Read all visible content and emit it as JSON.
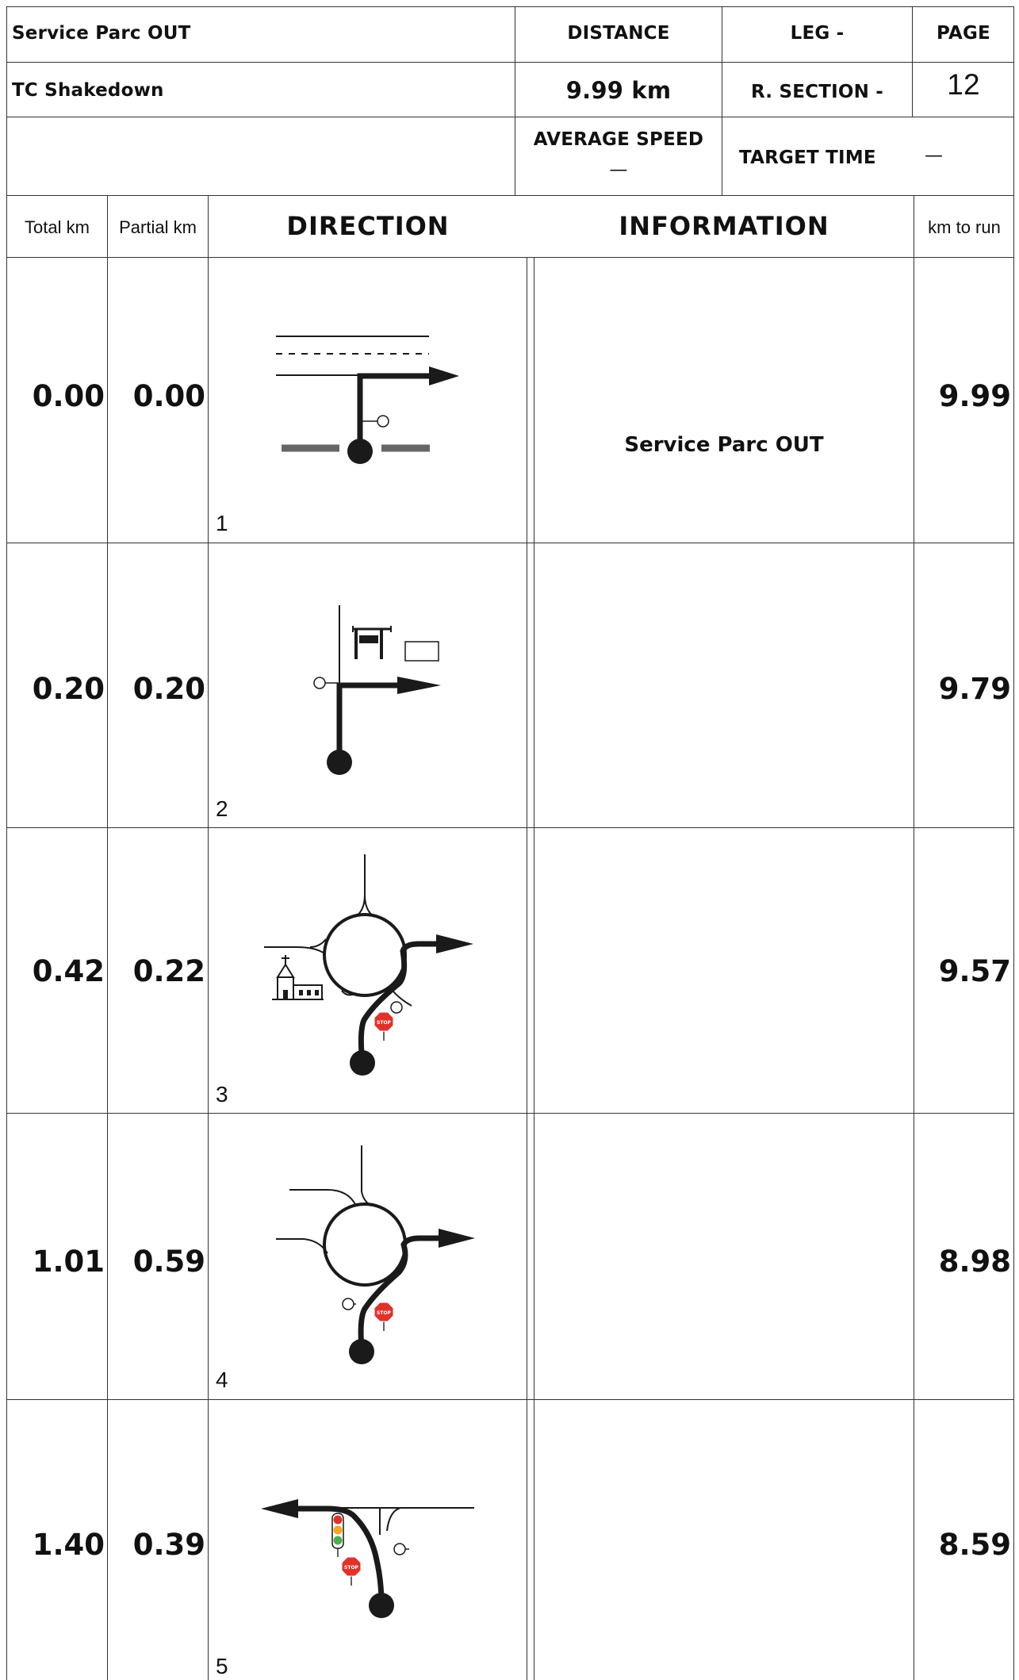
{
  "header": {
    "stage_title": "Service Parc OUT",
    "stage_subtitle": "TC Shakedown",
    "distance_label": "DISTANCE",
    "distance_value": "9.99 km",
    "leg_label": "LEG -",
    "section_label": "R. SECTION -",
    "page_label": "PAGE",
    "page_number": "12",
    "avg_speed_label": "AVERAGE SPEED",
    "avg_speed_value": "—",
    "target_time_label": "TARGET TIME",
    "target_time_value": "—"
  },
  "columns": {
    "total_km": "Total km",
    "partial_km": "Partial km",
    "direction": "DIRECTION",
    "information": "INFORMATION",
    "km_to_run": "km to run"
  },
  "rows": [
    {
      "total": "0.00",
      "partial": "0.00",
      "step": "1",
      "info": "Service Parc OUT",
      "to_run": "9.99",
      "icon": "t-junction-right-icon"
    },
    {
      "total": "0.20",
      "partial": "0.20",
      "step": "2",
      "info": "",
      "to_run": "9.79",
      "icon": "right-turn-gas-station-icon"
    },
    {
      "total": "0.42",
      "partial": "0.22",
      "step": "3",
      "info": "",
      "to_run": "9.57",
      "icon": "roundabout-church-stop-icon"
    },
    {
      "total": "1.01",
      "partial": "0.59",
      "step": "4",
      "info": "",
      "to_run": "8.98",
      "icon": "roundabout-stop-icon"
    },
    {
      "total": "1.40",
      "partial": "0.39",
      "step": "5",
      "info": "",
      "to_run": "8.59",
      "icon": "t-junction-left-traffic-light-icon"
    }
  ],
  "colors": {
    "line": "#333333",
    "ink": "#1a1a1a",
    "stop_red": "#e0322b",
    "light_green": "#4caf50",
    "light_amber": "#f5a623",
    "sign_gray": "#666666"
  }
}
